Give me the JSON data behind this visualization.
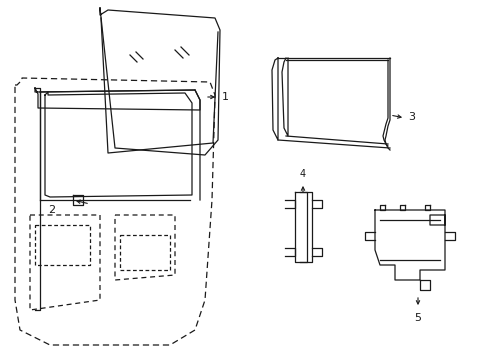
{
  "background_color": "#ffffff",
  "fig_width": 4.89,
  "fig_height": 3.6,
  "dpi": 100,
  "line_color": "#1a1a1a",
  "lw": 0.9
}
